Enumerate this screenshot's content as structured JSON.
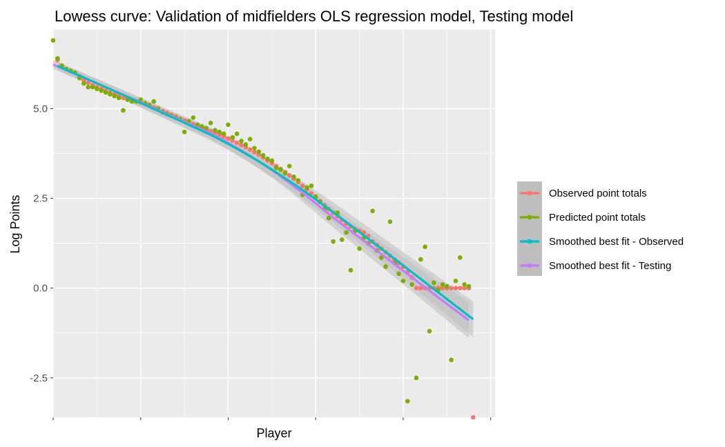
{
  "chart_data": {
    "type": "scatter",
    "title": "Lowess curve: Validation of midfielders OLS regression model, Testing model",
    "xlabel": "Player",
    "ylabel": "Log Points",
    "xlim": [
      0,
      101
    ],
    "ylim": [
      -3.6,
      7.2
    ],
    "y_ticks": [
      -2.5,
      0,
      2.5,
      5
    ],
    "y_tick_labels": [
      "-2.5",
      "0.0",
      "2.5",
      "5.0"
    ],
    "x_ticks": [
      0,
      20,
      40,
      60,
      80,
      100
    ],
    "grid": true,
    "legend_position": "right",
    "colors": {
      "observed": "#F8766D",
      "predicted": "#7CAE00",
      "smooth_observed": "#00BFC4",
      "smooth_testing": "#C77CFF",
      "panel_bg": "#EBEBEB",
      "band": "#BEBEBE"
    },
    "legend": [
      {
        "label": "Observed point totals",
        "color": "#F8766D"
      },
      {
        "label": "Predicted point totals",
        "color": "#7CAE00"
      },
      {
        "label": "Smoothed best fit - Observed",
        "color": "#00BFC4"
      },
      {
        "label": "Smoothed best fit - Testing",
        "color": "#C77CFF"
      }
    ],
    "series": [
      {
        "name": "Observed point totals",
        "x": [
          1,
          2,
          3,
          4,
          5,
          6,
          7,
          8,
          9,
          10,
          11,
          12,
          13,
          14,
          15,
          16,
          17,
          18,
          19,
          20,
          21,
          22,
          23,
          24,
          25,
          26,
          27,
          28,
          29,
          30,
          31,
          32,
          33,
          34,
          35,
          36,
          37,
          38,
          39,
          40,
          41,
          42,
          43,
          44,
          45,
          46,
          47,
          48,
          49,
          50,
          51,
          52,
          53,
          54,
          55,
          56,
          57,
          58,
          59,
          60,
          61,
          62,
          63,
          64,
          65,
          66,
          67,
          68,
          69,
          70,
          71,
          72,
          73,
          74,
          75,
          76,
          77,
          78,
          79,
          80,
          81,
          82,
          83,
          84,
          85,
          86,
          87,
          88,
          89,
          90,
          91,
          92,
          93,
          94,
          95,
          96
        ],
        "values": [
          6.35,
          6.2,
          6.1,
          6.05,
          6.0,
          5.9,
          5.8,
          5.72,
          5.65,
          5.6,
          5.55,
          5.5,
          5.45,
          5.4,
          5.35,
          5.3,
          5.27,
          5.23,
          5.2,
          5.17,
          5.13,
          5.08,
          5.03,
          4.98,
          4.93,
          4.88,
          4.83,
          4.78,
          4.72,
          4.67,
          4.62,
          4.57,
          4.52,
          4.47,
          4.42,
          4.37,
          4.32,
          4.27,
          4.22,
          4.17,
          4.11,
          4.05,
          3.99,
          3.93,
          3.86,
          3.79,
          3.72,
          3.64,
          3.56,
          3.48,
          3.4,
          3.32,
          3.23,
          3.14,
          3.05,
          2.95,
          2.85,
          2.75,
          2.64,
          2.53,
          2.42,
          2.31,
          2.2,
          2.1,
          2.0,
          1.9,
          1.8,
          1.72,
          1.65,
          1.6,
          1.55,
          1.45,
          1.3,
          1.2,
          1.1,
          1.0,
          0.9,
          0.8,
          0.7,
          0.6,
          0.45,
          0.3,
          0.0,
          0.0,
          0.0,
          0.0,
          0.0,
          0.0,
          0.0,
          0.0,
          0.0,
          0.0,
          0.0,
          0.0,
          0.0,
          -3.6
        ]
      },
      {
        "name": "Predicted point totals",
        "x": [
          0,
          1,
          2,
          3,
          4,
          5,
          6,
          7,
          8,
          9,
          10,
          11,
          12,
          13,
          14,
          15,
          16,
          17,
          18,
          19,
          20,
          21,
          22,
          23,
          24,
          25,
          26,
          27,
          28,
          29,
          30,
          31,
          32,
          33,
          34,
          35,
          36,
          37,
          38,
          39,
          40,
          41,
          42,
          43,
          44,
          45,
          46,
          47,
          48,
          49,
          50,
          51,
          52,
          53,
          54,
          55,
          56,
          57,
          58,
          59,
          60,
          61,
          62,
          63,
          64,
          65,
          66,
          67,
          68,
          69,
          70,
          71,
          72,
          73,
          74,
          75,
          76,
          77,
          78,
          79,
          80,
          81,
          82,
          83,
          84,
          85,
          86,
          87,
          88,
          89,
          90,
          91,
          92,
          93,
          94,
          95
        ],
        "values": [
          6.9,
          6.4,
          6.2,
          6.1,
          6.05,
          6.0,
          5.85,
          5.7,
          5.6,
          5.6,
          5.55,
          5.5,
          5.45,
          5.4,
          5.35,
          5.3,
          4.95,
          5.25,
          5.2,
          5.2,
          5.25,
          5.15,
          5.1,
          5.2,
          5.0,
          4.9,
          4.85,
          4.8,
          4.75,
          4.7,
          4.35,
          4.65,
          4.75,
          4.55,
          4.5,
          4.45,
          4.6,
          4.4,
          4.35,
          4.3,
          4.55,
          4.2,
          4.3,
          4.1,
          4.0,
          4.15,
          3.9,
          3.8,
          3.7,
          3.6,
          3.55,
          3.35,
          3.3,
          3.2,
          3.4,
          3.1,
          3.0,
          2.6,
          2.8,
          2.85,
          2.55,
          2.4,
          2.2,
          1.95,
          1.3,
          2.1,
          1.35,
          1.55,
          0.5,
          1.6,
          1.1,
          1.4,
          1.25,
          2.15,
          1.05,
          0.85,
          0.6,
          1.85,
          0.7,
          0.4,
          0.2,
          -3.15,
          0.1,
          -2.5,
          0.8,
          1.15,
          -1.2,
          0.15,
          -0.05,
          0.1,
          0.05,
          -2.0,
          0.2,
          0.85,
          0.1,
          0.05
        ]
      }
    ]
  }
}
